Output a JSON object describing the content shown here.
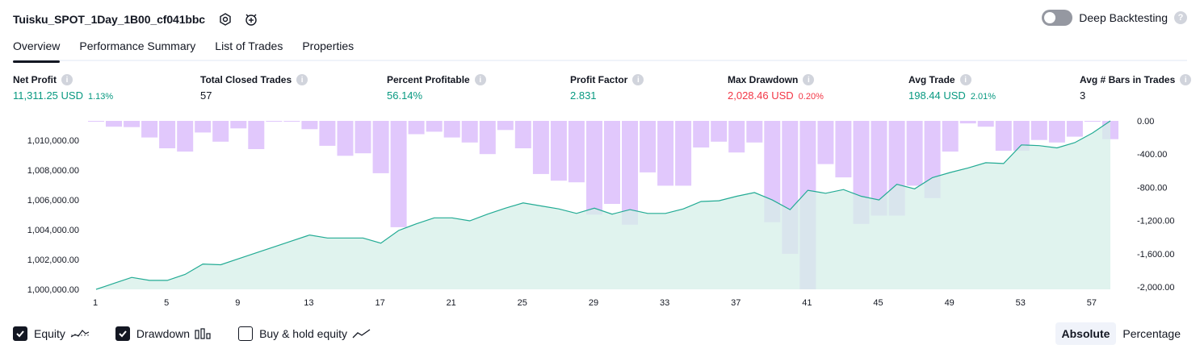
{
  "header": {
    "title": "Tuisku_SPOT_1Day_1B00_cf041bbc",
    "deep_backtesting_label": "Deep Backtesting",
    "help_glyph": "?"
  },
  "tabs": [
    "Overview",
    "Performance Summary",
    "List of Trades",
    "Properties"
  ],
  "metrics": [
    {
      "label": "Net Profit",
      "value": "11,311.25 USD",
      "pct": "1.13%",
      "tone": "pos"
    },
    {
      "label": "Total Closed Trades",
      "value": "57",
      "pct": "",
      "tone": "neu"
    },
    {
      "label": "Percent Profitable",
      "value": "56.14%",
      "pct": "",
      "tone": "pos"
    },
    {
      "label": "Profit Factor",
      "value": "2.831",
      "pct": "",
      "tone": "pos"
    },
    {
      "label": "Max Drawdown",
      "value": "2,028.46 USD",
      "pct": "0.20%",
      "tone": "neg"
    },
    {
      "label": "Avg Trade",
      "value": "198.44 USD",
      "pct": "2.01%",
      "tone": "pos"
    },
    {
      "label": "Avg # Bars in Trades",
      "value": "3",
      "pct": "",
      "tone": "neu"
    }
  ],
  "legend": {
    "equity": "Equity",
    "drawdown": "Drawdown",
    "buy_hold": "Buy & hold equity",
    "equity_checked": true,
    "drawdown_checked": true,
    "buy_hold_checked": false
  },
  "view": {
    "absolute": "Absolute",
    "percentage": "Percentage",
    "selected": "absolute"
  },
  "colors": {
    "equity_line": "#22ab94",
    "equity_fill": "#d5efe8",
    "drawdown_bar": "#e1c8fc",
    "positive": "#089981",
    "negative": "#f23645"
  },
  "chart_data": {
    "type": "bar",
    "x_ticks": [
      "1",
      "5",
      "9",
      "13",
      "17",
      "21",
      "25",
      "29",
      "33",
      "37",
      "41",
      "45",
      "49",
      "53",
      "57"
    ],
    "left_axis": {
      "ticks": [
        "1,000,000.00",
        "1,002,000.00",
        "1,004,000.00",
        "1,006,000.00",
        "1,008,000.00",
        "1,010,000.00"
      ],
      "range": [
        1000000,
        1011311.25
      ]
    },
    "right_axis": {
      "ticks": [
        "0.00",
        "-400.00",
        "-800.00",
        "-1,200.00",
        "-1,600.00",
        "-2,000.00"
      ],
      "range": [
        -2028.46,
        0
      ]
    },
    "series": [
      {
        "name": "Equity",
        "type": "area",
        "x": [
          1,
          2,
          3,
          4,
          5,
          6,
          7,
          8,
          9,
          10,
          11,
          12,
          13,
          14,
          15,
          16,
          17,
          18,
          19,
          20,
          21,
          22,
          23,
          24,
          25,
          26,
          27,
          28,
          29,
          30,
          31,
          32,
          33,
          34,
          35,
          36,
          37,
          38,
          39,
          40,
          41,
          42,
          43,
          44,
          45,
          46,
          47,
          48,
          49,
          50,
          51,
          52,
          53,
          54,
          55,
          56,
          57,
          58
        ],
        "values": [
          1000000,
          1000400,
          1000800,
          1000600,
          1000600,
          1001000,
          1001700,
          1001650,
          1002050,
          1002450,
          1002850,
          1003250,
          1003650,
          1003450,
          1003450,
          1003450,
          1003100,
          1003950,
          1004400,
          1004800,
          1004800,
          1004600,
          1005050,
          1005450,
          1005800,
          1005600,
          1005400,
          1005100,
          1005450,
          1005050,
          1005350,
          1005100,
          1005100,
          1005400,
          1005900,
          1005950,
          1006250,
          1006500,
          1006000,
          1005350,
          1006650,
          1006450,
          1006700,
          1006250,
          1006000,
          1007050,
          1006750,
          1007500,
          1007850,
          1008150,
          1008500,
          1008450,
          1009700,
          1009650,
          1009500,
          1009850,
          1010500,
          1011311.25
        ]
      },
      {
        "name": "Drawdown",
        "type": "bar",
        "x": [
          1,
          2,
          3,
          4,
          5,
          6,
          7,
          8,
          9,
          10,
          11,
          12,
          13,
          14,
          15,
          16,
          17,
          18,
          19,
          20,
          21,
          22,
          23,
          24,
          25,
          26,
          27,
          28,
          29,
          30,
          31,
          32,
          33,
          34,
          35,
          36,
          37,
          38,
          39,
          40,
          41,
          42,
          43,
          44,
          45,
          46,
          47,
          48,
          49,
          50,
          51,
          52,
          53,
          54,
          55,
          56,
          57,
          58
        ],
        "values": [
          -10,
          -70,
          -75,
          -200,
          -330,
          -370,
          -140,
          -250,
          -90,
          -340,
          -10,
          -5,
          -100,
          -300,
          -420,
          -390,
          -630,
          -1280,
          -160,
          -130,
          -200,
          -260,
          -400,
          -110,
          -330,
          -640,
          -720,
          -740,
          -1130,
          -1000,
          -1250,
          -620,
          -780,
          -780,
          -320,
          -250,
          -380,
          -260,
          -1220,
          -1600,
          -2028.46,
          -520,
          -680,
          -1240,
          -1140,
          -1140,
          -780,
          -930,
          -370,
          -30,
          -70,
          -360,
          -360,
          -230,
          -260,
          -190,
          -10,
          -220
        ]
      }
    ],
    "xlabel": "",
    "ylabel": "",
    "grid": false
  }
}
